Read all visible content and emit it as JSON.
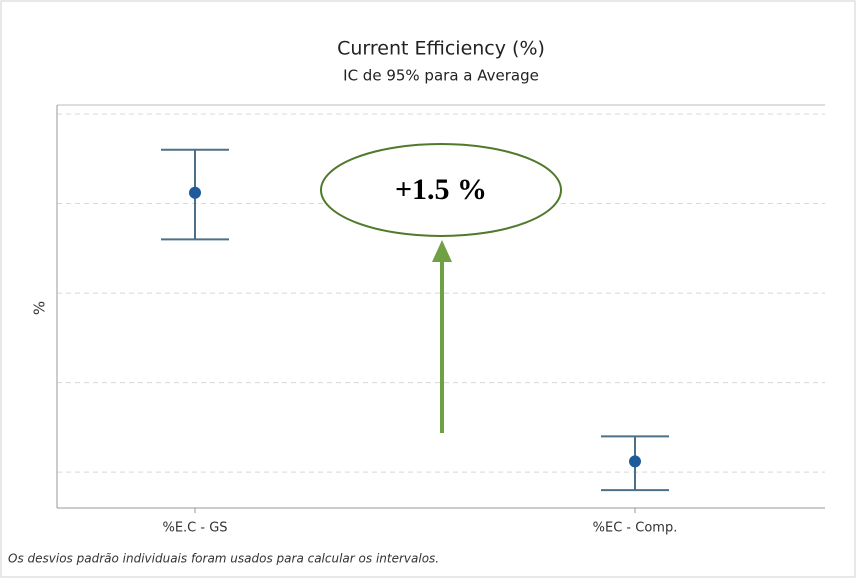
{
  "chart_data": {
    "type": "interval",
    "title": "Current Efficiency (%)",
    "subtitle": "IC de 95% para a Average",
    "y_label": "%",
    "categories": [
      "%E.C - GS",
      "%EC - Comp."
    ],
    "series": [
      {
        "color": "#1f5a9a",
        "bar_color": "#4d7089",
        "values": [
          1.56,
          0.06
        ],
        "lower": [
          1.3,
          -0.1
        ],
        "upper": [
          1.8,
          0.2
        ]
      }
    ],
    "ylim": [
      -0.2,
      2.05
    ],
    "yticks": [
      0,
      0.5,
      1,
      1.5,
      2
    ],
    "grid": true,
    "annotation": "+1.5 %",
    "footnote": "Os desvios padrão individuais foram usados para calcular os intervalos."
  }
}
